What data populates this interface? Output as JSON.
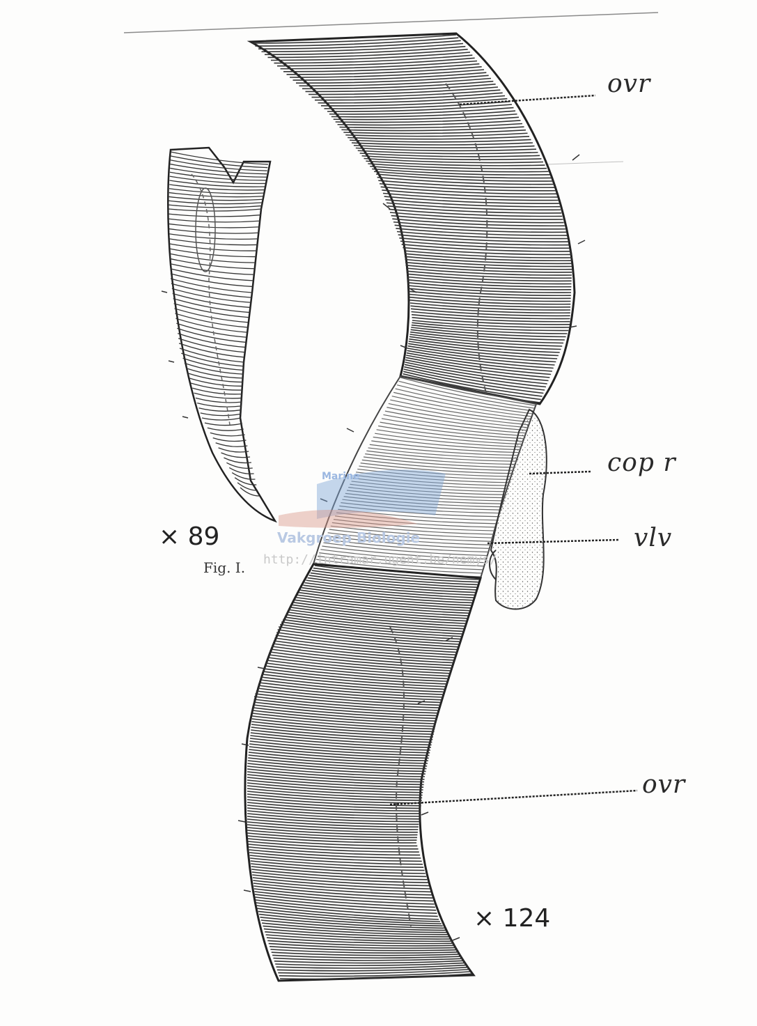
{
  "labels": {
    "ovr_top": "ovr",
    "cop_r": "cop r",
    "vlv": "vlv",
    "ovr_bottom": "ovr"
  },
  "magnifications": {
    "small_figure": "× 89",
    "large_figure": "× 124"
  },
  "figure_caption": "Fig. I.",
  "watermark": {
    "url": "http://intramar.ugent.be/nemys/",
    "logo_text_top": "Marine",
    "logo_text_bottom": "Vakgroep Biologie"
  },
  "colors": {
    "ink": "#2a2a2a",
    "paper": "#fdfdfc",
    "watermark_blue": "#7fa6d8",
    "watermark_red": "#d99a8c"
  }
}
